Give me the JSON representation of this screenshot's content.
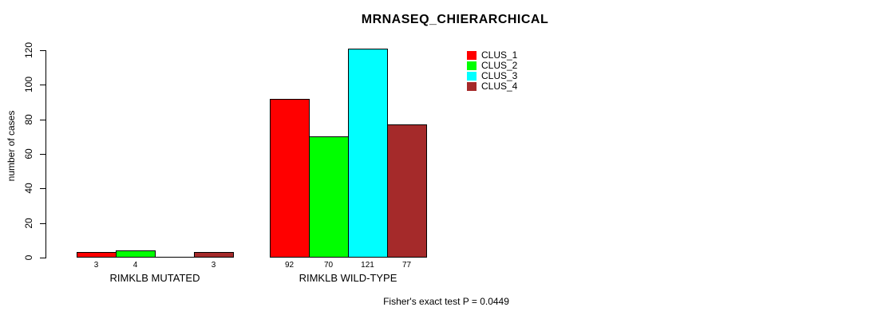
{
  "chart_data": {
    "type": "bar",
    "title": "MRNASEQ_CHIERARCHICAL",
    "ylabel": "number of cases",
    "xlabel": "",
    "categories": [
      "RIMKLB MUTATED",
      "RIMKLB WILD-TYPE"
    ],
    "series": [
      {
        "name": "CLUS_1",
        "color": "#ff0000",
        "values": [
          3,
          92
        ]
      },
      {
        "name": "CLUS_2",
        "color": "#00ff00",
        "values": [
          4,
          70
        ]
      },
      {
        "name": "CLUS_3",
        "color": "#00ffff",
        "values": [
          0,
          121
        ]
      },
      {
        "name": "CLUS_4",
        "color": "#a52a2a",
        "values": [
          3,
          77
        ]
      }
    ],
    "yticks": [
      0,
      20,
      40,
      60,
      80,
      100,
      120
    ],
    "ylim": [
      0,
      130
    ],
    "bar_value_labels": [
      "3",
      "4",
      "",
      "3",
      "92",
      "70",
      "121",
      "77"
    ],
    "zero_height_bar_drawn_as_line": true,
    "legend_position": "top-right",
    "legend_entries": [
      "CLUS_1",
      "CLUS_2",
      "CLUS_3",
      "CLUS_4"
    ],
    "annotation": "Fisher's exact test P = 0.0449",
    "grid": false,
    "background_color": "#ffffff",
    "text_color": "#000000",
    "axis_color": "#000000"
  }
}
